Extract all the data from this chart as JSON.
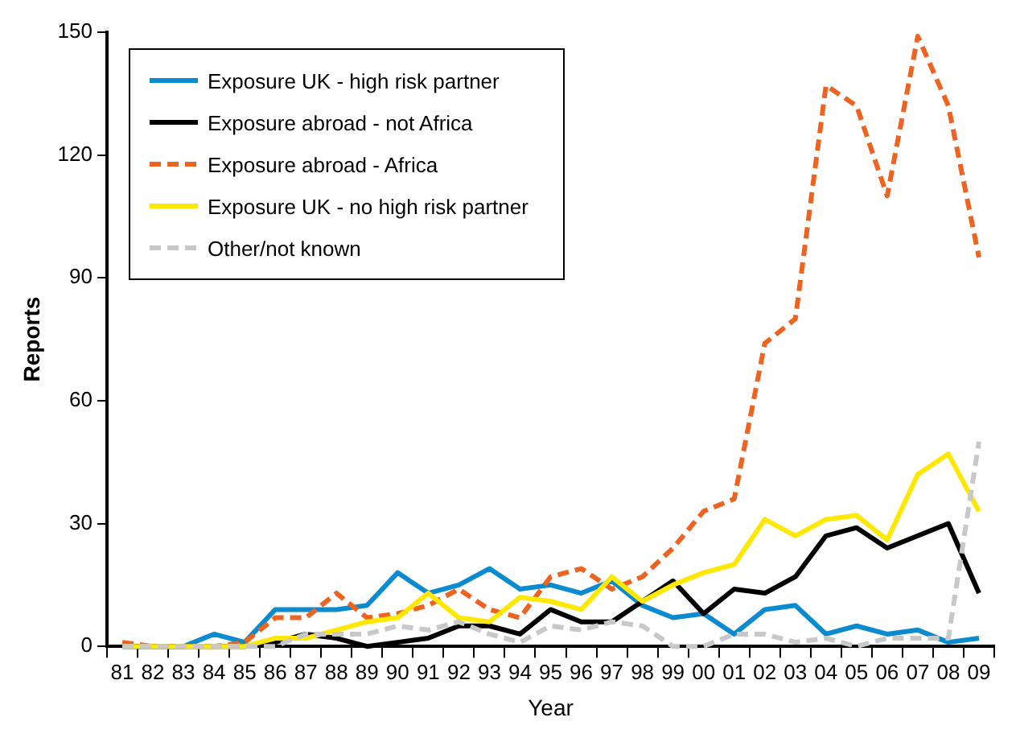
{
  "chart_data": {
    "type": "line",
    "xlabel": "Year",
    "ylabel": "Reports",
    "categories": [
      "81",
      "82",
      "83",
      "84",
      "85",
      "86",
      "87",
      "88",
      "89",
      "90",
      "91",
      "92",
      "93",
      "94",
      "95",
      "96",
      "97",
      "98",
      "99",
      "00",
      "01",
      "02",
      "03",
      "04",
      "05",
      "06",
      "07",
      "08",
      "09"
    ],
    "series": [
      {
        "name": "Exposure UK - high risk partner",
        "color": "#0a8bd0",
        "line_style": "solid",
        "values": [
          0,
          0,
          0,
          3,
          1,
          9,
          9,
          9,
          10,
          18,
          13,
          15,
          19,
          14,
          15,
          13,
          16,
          10,
          7,
          8,
          3,
          9,
          10,
          3,
          5,
          3,
          4,
          1,
          2
        ]
      },
      {
        "name": "Exposure abroad - not Africa",
        "color": "#000000",
        "line_style": "solid",
        "values": [
          0,
          0,
          0,
          0,
          0,
          1,
          3,
          2,
          0,
          1,
          2,
          5,
          5,
          3,
          9,
          6,
          6,
          11,
          16,
          8,
          14,
          13,
          17,
          27,
          29,
          24,
          27,
          30,
          13
        ]
      },
      {
        "name": "Exposure abroad - Africa",
        "color": "#ee6320",
        "line_style": "dashed",
        "values": [
          1,
          0,
          0,
          0,
          1,
          7,
          7,
          13,
          7,
          8,
          10,
          14,
          9,
          7,
          17,
          19,
          14,
          17,
          24,
          33,
          36,
          74,
          80,
          137,
          132,
          110,
          149,
          132,
          95
        ]
      },
      {
        "name": "Exposure UK - no high risk partner",
        "color": "#ffe800",
        "line_style": "solid",
        "values": [
          0,
          0,
          0,
          0,
          0,
          2,
          2,
          4,
          6,
          7,
          13,
          7,
          6,
          12,
          11,
          9,
          17,
          11,
          15,
          18,
          20,
          31,
          27,
          31,
          32,
          26,
          42,
          47,
          33
        ]
      },
      {
        "name": "Other/not known",
        "color": "#c8c8c8",
        "line_style": "dashed",
        "values": [
          0,
          0,
          0,
          0,
          0,
          0,
          3,
          3,
          3,
          5,
          4,
          6,
          3,
          1,
          5,
          4,
          6,
          5,
          0,
          0,
          3,
          3,
          1,
          2,
          0,
          2,
          2,
          2,
          50
        ]
      }
    ],
    "ylim": [
      0,
      150
    ],
    "yticks": [
      0,
      30,
      60,
      90,
      120,
      150
    ],
    "grid": false,
    "legend": "top left",
    "marker": "none"
  }
}
